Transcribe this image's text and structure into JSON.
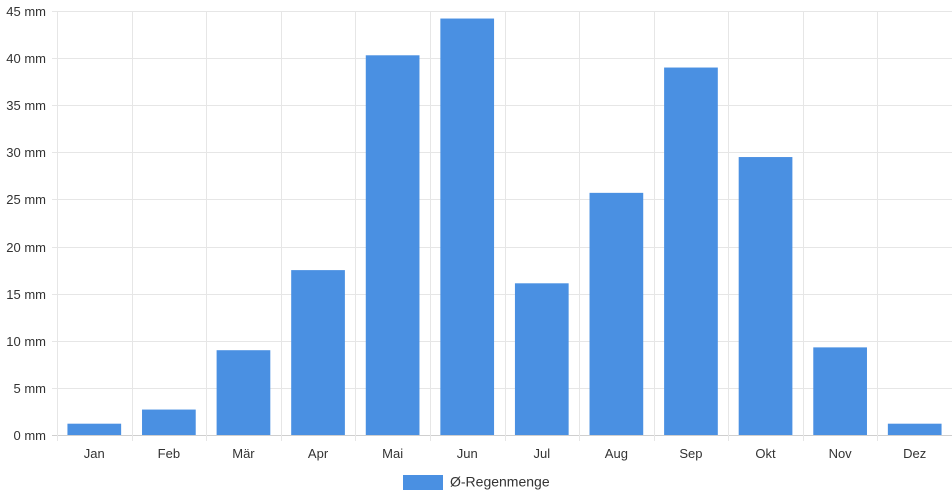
{
  "chart_data": {
    "type": "bar",
    "categories": [
      "Jan",
      "Feb",
      "Mär",
      "Apr",
      "Mai",
      "Jun",
      "Jul",
      "Aug",
      "Sep",
      "Okt",
      "Nov",
      "Dez"
    ],
    "series": [
      {
        "name": "Ø-Regenmenge",
        "color": "#4a90e2",
        "values": [
          1.2,
          2.7,
          9.0,
          17.5,
          40.3,
          44.2,
          16.1,
          25.7,
          39.0,
          29.5,
          9.3,
          1.2
        ]
      }
    ],
    "y_unit": "mm",
    "ylim": [
      0,
      45
    ],
    "y_ticks": [
      "0 mm",
      "5 mm",
      "10 mm",
      "15 mm",
      "20 mm",
      "25 mm",
      "30 mm",
      "35 mm",
      "40 mm",
      "45 mm"
    ],
    "grid": true,
    "legend_position": "bottom"
  }
}
